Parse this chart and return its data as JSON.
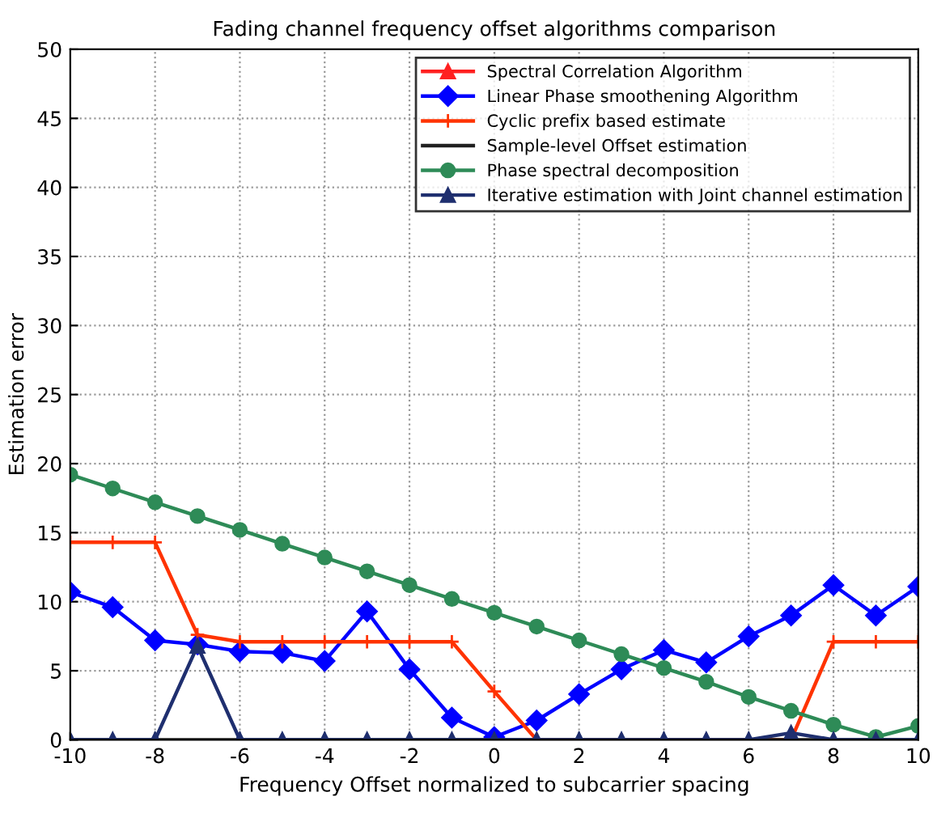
{
  "chart_data": {
    "type": "line",
    "title": "Fading channel frequency offset algorithms comparison",
    "xlabel": "Frequency Offset normalized to subcarrier spacing",
    "ylabel": "Estimation error",
    "x": [
      -10,
      -9,
      -8,
      -7,
      -6,
      -5,
      -4,
      -3,
      -2,
      -1,
      0,
      1,
      2,
      3,
      4,
      5,
      6,
      7,
      8,
      9,
      10
    ],
    "series": [
      {
        "name": "Spectral Correlation Algorithm",
        "color": "#ff2020",
        "marker": "triangle",
        "values": [
          null,
          null,
          null,
          null,
          null,
          null,
          null,
          null,
          null,
          null,
          null,
          null,
          null,
          null,
          null,
          null,
          null,
          null,
          null,
          null,
          null
        ]
      },
      {
        "name": "Linear Phase smoothening Algorithm",
        "color": "#0000ff",
        "marker": "diamond",
        "values": [
          10.7,
          9.6,
          7.2,
          6.9,
          6.4,
          6.3,
          5.7,
          9.3,
          5.1,
          1.6,
          0.2,
          1.4,
          3.3,
          5.1,
          6.5,
          5.6,
          7.5,
          9.0,
          11.2,
          9.0,
          11.1
        ]
      },
      {
        "name": "Cyclic prefix based estimate",
        "color": "#ff3300",
        "marker": "cross",
        "values": [
          14.3,
          14.3,
          14.3,
          7.6,
          7.1,
          7.1,
          7.1,
          7.1,
          7.1,
          7.1,
          3.5,
          0,
          0,
          0,
          0,
          0,
          0,
          0,
          7.1,
          7.1,
          7.1
        ]
      },
      {
        "name": "Sample-level Offset estimation",
        "color": "#202020",
        "marker": "none",
        "values": [
          0,
          0,
          0,
          0,
          0,
          0,
          0,
          0,
          0,
          0,
          0,
          0,
          0,
          0,
          0,
          0,
          0,
          0,
          0,
          0,
          0
        ]
      },
      {
        "name": "Phase spectral decomposition",
        "color": "#2e8b57",
        "marker": "circle",
        "values": [
          19.2,
          18.2,
          17.2,
          16.2,
          15.2,
          14.2,
          13.2,
          12.2,
          11.2,
          10.2,
          9.2,
          8.2,
          7.2,
          6.2,
          5.2,
          4.2,
          3.1,
          2.1,
          1.1,
          0.2,
          1.0
        ]
      },
      {
        "name": "Iterative estimation with Joint channel estimation",
        "color": "#1f2f6f",
        "marker": "triangle",
        "values": [
          0,
          0,
          0,
          6.8,
          0,
          0,
          0,
          0,
          0,
          0,
          0,
          0,
          0,
          0,
          0,
          0,
          0,
          0.5,
          0,
          0,
          0
        ]
      }
    ],
    "xlim": [
      -10,
      10
    ],
    "ylim": [
      0,
      50
    ],
    "xticks": [
      -10,
      -8,
      -6,
      -4,
      -2,
      0,
      2,
      4,
      6,
      8,
      10
    ],
    "yticks": [
      0,
      5,
      10,
      15,
      20,
      25,
      30,
      35,
      40,
      45,
      50
    ],
    "grid": true,
    "legend": "top right",
    "line_style": "solid"
  }
}
